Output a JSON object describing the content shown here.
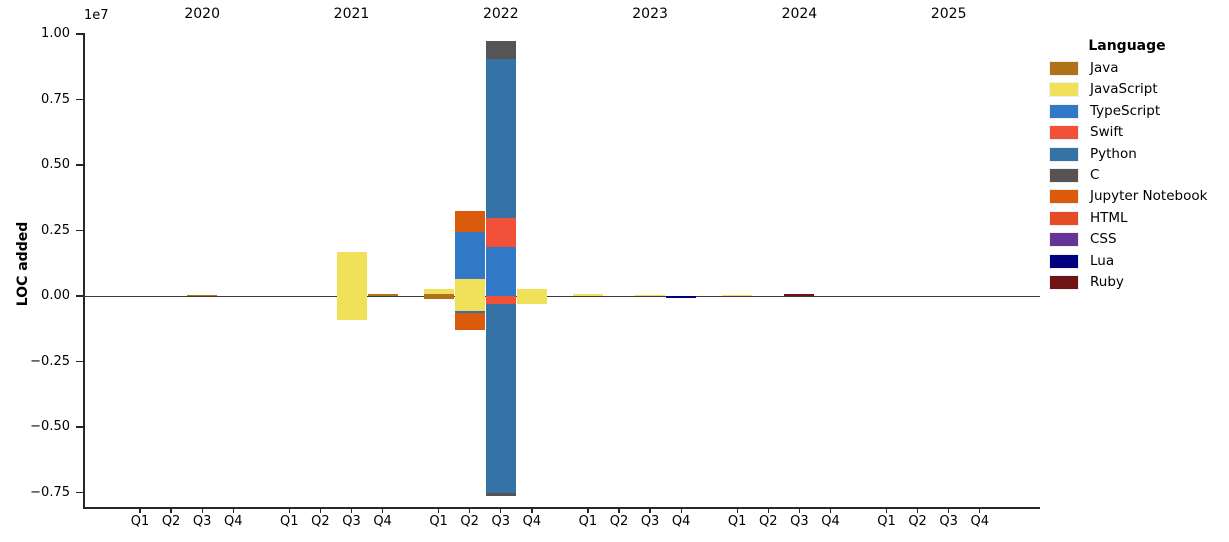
{
  "chart_data": {
    "type": "bar",
    "stacked": true,
    "title": "",
    "ylabel": "LOC added",
    "y_scale_label": "1e7",
    "grid": false,
    "legend_position": "right",
    "x_years": [
      "2020",
      "2021",
      "2022",
      "2023",
      "2024",
      "2025"
    ],
    "x_quarters": [
      "Q1",
      "Q2",
      "Q3",
      "Q4"
    ],
    "ylim": [
      -7800000,
      10200000
    ],
    "y_ticks": [
      {
        "label": "1.00",
        "value": 10000000
      },
      {
        "label": "0.75",
        "value": 7500000
      },
      {
        "label": "0.50",
        "value": 5000000
      },
      {
        "label": "0.25",
        "value": 2500000
      },
      {
        "label": "0.00",
        "value": 0
      },
      {
        "label": "−0.25",
        "value": -2500000
      },
      {
        "label": "−0.50",
        "value": -5000000
      },
      {
        "label": "−0.75",
        "value": -7500000
      }
    ],
    "legend": {
      "title": "Language",
      "entries": [
        {
          "label": "Java",
          "color": "#b07219"
        },
        {
          "label": "JavaScript",
          "color": "#f1e05a"
        },
        {
          "label": "TypeScript",
          "color": "#3178c6"
        },
        {
          "label": "Swift",
          "color": "#f05138"
        },
        {
          "label": "Python",
          "color": "#3572a5"
        },
        {
          "label": "C",
          "color": "#555555"
        },
        {
          "label": "Jupyter Notebook",
          "color": "#da5b0b"
        },
        {
          "label": "HTML",
          "color": "#e34c26"
        },
        {
          "label": "CSS",
          "color": "#663399"
        },
        {
          "label": "Lua",
          "color": "#000080"
        },
        {
          "label": "Ruby",
          "color": "#701516"
        }
      ]
    },
    "bars": [
      {
        "year": "2020",
        "quarter": "Q3",
        "segments": [
          {
            "language": "Java",
            "value": 30000
          }
        ]
      },
      {
        "year": "2021",
        "quarter": "Q3",
        "segments": [
          {
            "language": "JavaScript",
            "value": 1680000
          },
          {
            "language": "JavaScript",
            "value": -910000
          }
        ]
      },
      {
        "year": "2021",
        "quarter": "Q4",
        "segments": [
          {
            "language": "Java",
            "value": 60000
          }
        ]
      },
      {
        "year": "2022",
        "quarter": "Q1",
        "segments": [
          {
            "language": "Java",
            "value": 60000
          },
          {
            "language": "JavaScript",
            "value": 190000
          },
          {
            "language": "Java",
            "value": -100000
          }
        ]
      },
      {
        "year": "2022",
        "quarter": "Q2",
        "segments": [
          {
            "language": "JavaScript",
            "value": 630000
          },
          {
            "language": "TypeScript",
            "value": 1820000
          },
          {
            "language": "Jupyter Notebook",
            "value": 780000
          },
          {
            "language": "JavaScript",
            "value": -560000
          },
          {
            "language": "Python",
            "value": -80000
          },
          {
            "language": "Jupyter Notebook",
            "value": -640000
          }
        ]
      },
      {
        "year": "2022",
        "quarter": "Q3",
        "segments": [
          {
            "language": "TypeScript",
            "value": 1880000
          },
          {
            "language": "Swift",
            "value": 1110000
          },
          {
            "language": "Python",
            "value": 6060000
          },
          {
            "language": "C",
            "value": 680000
          },
          {
            "language": "Swift",
            "value": -300000
          },
          {
            "language": "Python",
            "value": -7220000
          },
          {
            "language": "C",
            "value": -100000
          }
        ]
      },
      {
        "year": "2022",
        "quarter": "Q4",
        "segments": [
          {
            "language": "JavaScript",
            "value": 270000
          },
          {
            "language": "JavaScript",
            "value": -300000
          }
        ]
      },
      {
        "year": "2023",
        "quarter": "Q1",
        "segments": [
          {
            "language": "JavaScript",
            "value": 80000
          }
        ]
      },
      {
        "year": "2023",
        "quarter": "Q3",
        "segments": [
          {
            "language": "JavaScript",
            "value": 40000
          }
        ]
      },
      {
        "year": "2023",
        "quarter": "Q4",
        "segments": [
          {
            "language": "Lua",
            "value": -70000
          }
        ]
      },
      {
        "year": "2024",
        "quarter": "Q1",
        "segments": [
          {
            "language": "JavaScript",
            "value": 40000
          }
        ]
      },
      {
        "year": "2024",
        "quarter": "Q3",
        "segments": [
          {
            "language": "Ruby",
            "value": 60000
          }
        ]
      }
    ]
  }
}
